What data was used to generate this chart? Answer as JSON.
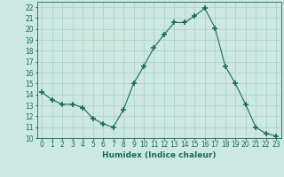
{
  "x": [
    0,
    1,
    2,
    3,
    4,
    5,
    6,
    7,
    8,
    9,
    10,
    11,
    12,
    13,
    14,
    15,
    16,
    17,
    18,
    19,
    20,
    21,
    22,
    23
  ],
  "y": [
    14.2,
    13.5,
    13.1,
    13.1,
    12.8,
    11.8,
    11.3,
    11.0,
    12.6,
    15.0,
    16.6,
    18.3,
    19.5,
    20.6,
    20.6,
    21.2,
    21.9,
    20.1,
    16.6,
    15.0,
    13.1,
    11.0,
    10.4,
    10.2
  ],
  "line_color": "#1a6b5a",
  "marker": "+",
  "marker_size": 4,
  "marker_lw": 1.2,
  "bg_color": "#cce8e0",
  "grid_color": "#a8cfc5",
  "xlabel": "Humidex (Indice chaleur)",
  "xlim": [
    -0.5,
    23.5
  ],
  "ylim": [
    10,
    22.5
  ],
  "yticks": [
    10,
    11,
    12,
    13,
    14,
    15,
    16,
    17,
    18,
    19,
    20,
    21,
    22
  ],
  "xticks": [
    0,
    1,
    2,
    3,
    4,
    5,
    6,
    7,
    8,
    9,
    10,
    11,
    12,
    13,
    14,
    15,
    16,
    17,
    18,
    19,
    20,
    21,
    22,
    23
  ],
  "label_fontsize": 6.5,
  "tick_fontsize": 5.5
}
